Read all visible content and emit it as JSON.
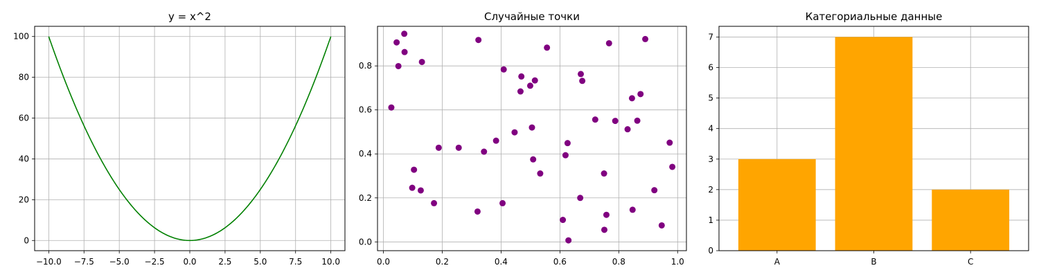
{
  "chart_data": [
    {
      "type": "line",
      "title": "y = x^2",
      "xlabel": "",
      "ylabel": "",
      "function": "y = x^2",
      "x_range": [
        -10,
        10
      ],
      "xlim": [
        -11,
        11
      ],
      "ylim": [
        -5,
        105
      ],
      "xticks": [
        -10,
        -7.5,
        -5,
        -2.5,
        0,
        2.5,
        5,
        7.5,
        10
      ],
      "xtick_labels": [
        "−10.0",
        "−7.5",
        "−5.0",
        "−2.5",
        "0.0",
        "2.5",
        "5.0",
        "7.5",
        "10.0"
      ],
      "yticks": [
        0,
        20,
        40,
        60,
        80,
        100
      ],
      "ytick_labels": [
        "0",
        "20",
        "40",
        "60",
        "80",
        "100"
      ],
      "grid": true,
      "color": "#008000",
      "series": [
        {
          "x": [
            -10,
            -9,
            -8,
            -7,
            -6,
            -5,
            -4,
            -3,
            -2,
            -1,
            0,
            1,
            2,
            3,
            4,
            5,
            6,
            7,
            8,
            9,
            10
          ],
          "y": [
            100,
            81,
            64,
            49,
            36,
            25,
            16,
            9,
            4,
            1,
            0,
            1,
            4,
            9,
            16,
            25,
            36,
            49,
            64,
            81,
            100
          ]
        }
      ]
    },
    {
      "type": "scatter",
      "title": "Случайные точки",
      "xlabel": "",
      "ylabel": "",
      "xlim": [
        -0.02,
        1.03
      ],
      "ylim": [
        -0.04,
        0.98
      ],
      "xticks": [
        0.0,
        0.2,
        0.4,
        0.6,
        0.8,
        1.0
      ],
      "xtick_labels": [
        "0.0",
        "0.2",
        "0.4",
        "0.6",
        "0.8",
        "1.0"
      ],
      "yticks": [
        0.0,
        0.2,
        0.4,
        0.6,
        0.8
      ],
      "ytick_labels": [
        "0.0",
        "0.2",
        "0.4",
        "0.6",
        "0.8"
      ],
      "grid": true,
      "color": "#800080",
      "points": [
        [
          0.027,
          0.611
        ],
        [
          0.045,
          0.907
        ],
        [
          0.051,
          0.799
        ],
        [
          0.071,
          0.946
        ],
        [
          0.072,
          0.863
        ],
        [
          0.131,
          0.818
        ],
        [
          0.098,
          0.246
        ],
        [
          0.104,
          0.328
        ],
        [
          0.127,
          0.234
        ],
        [
          0.172,
          0.176
        ],
        [
          0.188,
          0.428
        ],
        [
          0.256,
          0.428
        ],
        [
          0.32,
          0.138
        ],
        [
          0.323,
          0.918
        ],
        [
          0.342,
          0.41
        ],
        [
          0.383,
          0.46
        ],
        [
          0.405,
          0.176
        ],
        [
          0.409,
          0.784
        ],
        [
          0.446,
          0.498
        ],
        [
          0.466,
          0.684
        ],
        [
          0.469,
          0.752
        ],
        [
          0.499,
          0.71
        ],
        [
          0.505,
          0.52
        ],
        [
          0.509,
          0.375
        ],
        [
          0.515,
          0.734
        ],
        [
          0.533,
          0.311
        ],
        [
          0.556,
          0.883
        ],
        [
          0.61,
          0.1
        ],
        [
          0.619,
          0.394
        ],
        [
          0.626,
          0.449
        ],
        [
          0.629,
          0.007
        ],
        [
          0.669,
          0.2
        ],
        [
          0.671,
          0.763
        ],
        [
          0.676,
          0.732
        ],
        [
          0.72,
          0.556
        ],
        [
          0.75,
          0.311
        ],
        [
          0.751,
          0.055
        ],
        [
          0.758,
          0.123
        ],
        [
          0.767,
          0.903
        ],
        [
          0.788,
          0.55
        ],
        [
          0.83,
          0.512
        ],
        [
          0.845,
          0.653
        ],
        [
          0.847,
          0.146
        ],
        [
          0.863,
          0.551
        ],
        [
          0.874,
          0.672
        ],
        [
          0.89,
          0.922
        ],
        [
          0.921,
          0.235
        ],
        [
          0.946,
          0.075
        ],
        [
          0.973,
          0.451
        ],
        [
          0.982,
          0.341
        ]
      ]
    },
    {
      "type": "bar",
      "title": "Категориальные данные",
      "xlabel": "",
      "ylabel": "",
      "categories": [
        "A",
        "B",
        "C"
      ],
      "values": [
        3,
        7,
        2
      ],
      "ylim": [
        0,
        7.35
      ],
      "yticks": [
        0,
        1,
        2,
        3,
        4,
        5,
        6,
        7
      ],
      "ytick_labels": [
        "0",
        "1",
        "2",
        "3",
        "4",
        "5",
        "6",
        "7"
      ],
      "grid": true,
      "color": "#FFA500"
    }
  ]
}
